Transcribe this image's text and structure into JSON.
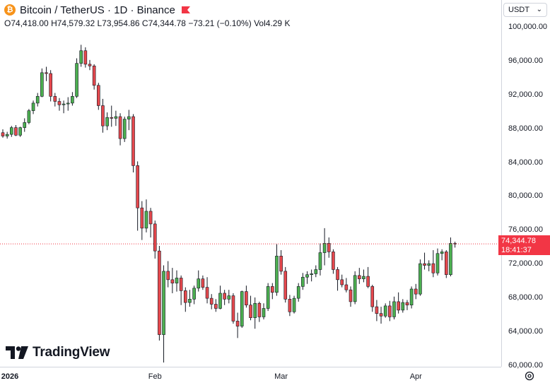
{
  "header": {
    "title": "Bitcoin / TetherUS · 1D · Binance",
    "coin_symbol": "₿",
    "ohlc": {
      "open_label": "O",
      "open": "74,418.00",
      "high_label": "H",
      "high": "74,579.32",
      "low_label": "L",
      "low": "73,954.86",
      "close_label": "C",
      "close": "74,344.78",
      "change": "−73.21 (−0.10%)",
      "vol_label": "Vol",
      "vol": "4.29 K"
    }
  },
  "axis": {
    "currency": "USDT",
    "last_price": "74,344.78",
    "countdown": "18:41:37"
  },
  "logo": {
    "text": "TradingView",
    "icon": "tradingview-logo-icon"
  },
  "colors": {
    "up": "#26a69a",
    "up_fill": "#4caf50",
    "down": "#f23645",
    "down_fill": "#e5484d",
    "price_line": "#f23645"
  },
  "chart_data": {
    "type": "candlestick",
    "title": "Bitcoin / TetherUS · 1D · Binance",
    "xlabel": "",
    "ylabel": "",
    "ylim": [
      59800,
      103200
    ],
    "y_ticks": [
      "100,000.00",
      "96,000.00",
      "92,000.00",
      "88,000.00",
      "84,000.00",
      "80,000.00",
      "76,000.00",
      "72,000.00",
      "68,000.00",
      "64,000.00",
      "60,000.00"
    ],
    "x_ticks": [
      "2026",
      "Feb",
      "Mar",
      "Apr"
    ],
    "x_tick_index": [
      0,
      35,
      64,
      95
    ],
    "grid": false,
    "candles": [
      [
        87500,
        87900,
        86900,
        87100
      ],
      [
        87100,
        87600,
        86800,
        87300
      ],
      [
        87300,
        88300,
        87000,
        88100
      ],
      [
        88100,
        88400,
        87100,
        87200
      ],
      [
        87200,
        88200,
        87000,
        88100
      ],
      [
        88100,
        89200,
        87600,
        88700
      ],
      [
        88700,
        90300,
        88500,
        90100
      ],
      [
        90100,
        91300,
        89700,
        91000
      ],
      [
        91000,
        92200,
        90600,
        91800
      ],
      [
        91800,
        95100,
        91700,
        94600
      ],
      [
        94600,
        95300,
        93600,
        94500
      ],
      [
        94500,
        94900,
        91200,
        91800
      ],
      [
        91800,
        92200,
        90600,
        91200
      ],
      [
        91200,
        91600,
        90100,
        90800
      ],
      [
        90800,
        91300,
        89800,
        90900
      ],
      [
        90900,
        91700,
        90100,
        91000
      ],
      [
        91000,
        92300,
        90700,
        91800
      ],
      [
        91800,
        96300,
        91600,
        95700
      ],
      [
        95700,
        97900,
        95300,
        97200
      ],
      [
        97200,
        97600,
        95200,
        95600
      ],
      [
        95600,
        96100,
        94900,
        95400
      ],
      [
        95400,
        95600,
        92600,
        93100
      ],
      [
        93100,
        93400,
        90200,
        90700
      ],
      [
        90700,
        91500,
        87500,
        88300
      ],
      [
        88300,
        89900,
        87800,
        89300
      ],
      [
        89300,
        90700,
        88200,
        89200
      ],
      [
        89200,
        90100,
        88300,
        89400
      ],
      [
        89400,
        89800,
        86000,
        86800
      ],
      [
        86800,
        89400,
        86400,
        89100
      ],
      [
        89100,
        90200,
        87800,
        89400
      ],
      [
        89400,
        89700,
        82800,
        83600
      ],
      [
        83600,
        84100,
        75900,
        78600
      ],
      [
        78600,
        79400,
        74800,
        76200
      ],
      [
        76200,
        79600,
        75700,
        78200
      ],
      [
        78200,
        78600,
        75100,
        76700
      ],
      [
        76700,
        77100,
        72600,
        73500
      ],
      [
        73500,
        74100,
        62900,
        63600
      ],
      [
        63600,
        71800,
        60300,
        71100
      ],
      [
        71100,
        72300,
        69200,
        70100
      ],
      [
        70100,
        71500,
        68500,
        69700
      ],
      [
        69700,
        71200,
        68700,
        70300
      ],
      [
        70300,
        70600,
        67100,
        68800
      ],
      [
        68800,
        69200,
        66300,
        67400
      ],
      [
        67400,
        68900,
        66900,
        67800
      ],
      [
        67800,
        69400,
        67200,
        69100
      ],
      [
        69100,
        71200,
        68700,
        70200
      ],
      [
        70200,
        70600,
        68900,
        69200
      ],
      [
        69200,
        70400,
        67300,
        67900
      ],
      [
        67900,
        68400,
        66600,
        67200
      ],
      [
        67200,
        67800,
        66300,
        66700
      ],
      [
        66700,
        69400,
        66600,
        68500
      ],
      [
        68500,
        68900,
        67100,
        67800
      ],
      [
        67800,
        68900,
        67300,
        68200
      ],
      [
        68200,
        68500,
        64900,
        65200
      ],
      [
        65200,
        66200,
        63200,
        64600
      ],
      [
        64600,
        68800,
        64400,
        68700
      ],
      [
        68700,
        69400,
        66800,
        67100
      ],
      [
        67100,
        68200,
        65300,
        65600
      ],
      [
        65600,
        68000,
        64300,
        67300
      ],
      [
        67300,
        67500,
        65100,
        65700
      ],
      [
        65700,
        67300,
        65400,
        66700
      ],
      [
        66700,
        69700,
        66400,
        69300
      ],
      [
        69300,
        69700,
        67800,
        68600
      ],
      [
        68600,
        74300,
        68200,
        72900
      ],
      [
        72900,
        73600,
        70700,
        71100
      ],
      [
        71100,
        71600,
        67400,
        67800
      ],
      [
        67800,
        68300,
        65800,
        66300
      ],
      [
        66300,
        68200,
        66100,
        67900
      ],
      [
        67900,
        69700,
        67500,
        69300
      ],
      [
        69300,
        70900,
        68900,
        70400
      ],
      [
        70400,
        71100,
        69600,
        70700
      ],
      [
        70700,
        71300,
        69900,
        70800
      ],
      [
        70800,
        71800,
        70400,
        71300
      ],
      [
        71300,
        74400,
        70600,
        73300
      ],
      [
        73300,
        76200,
        71800,
        74400
      ],
      [
        74400,
        75100,
        72700,
        73400
      ],
      [
        73400,
        73700,
        70800,
        71300
      ],
      [
        71300,
        71600,
        68800,
        70100
      ],
      [
        70100,
        70700,
        69200,
        69500
      ],
      [
        69500,
        70300,
        68600,
        68900
      ],
      [
        68900,
        69300,
        66900,
        67500
      ],
      [
        67500,
        71100,
        67200,
        70600
      ],
      [
        70600,
        71500,
        69600,
        70200
      ],
      [
        70200,
        71300,
        69800,
        70500
      ],
      [
        70500,
        71600,
        69100,
        69300
      ],
      [
        69300,
        69500,
        66300,
        66900
      ],
      [
        66900,
        67700,
        65200,
        66100
      ],
      [
        66100,
        66900,
        64900,
        65800
      ],
      [
        65800,
        67300,
        65600,
        67000
      ],
      [
        67000,
        67600,
        65200,
        65700
      ],
      [
        65700,
        68100,
        65400,
        67500
      ],
      [
        67500,
        68600,
        66100,
        66500
      ],
      [
        66500,
        67800,
        66200,
        67400
      ],
      [
        67400,
        67700,
        66500,
        67100
      ],
      [
        67100,
        69300,
        66700,
        69000
      ],
      [
        69000,
        69600,
        67800,
        68400
      ],
      [
        68400,
        72500,
        68200,
        72000
      ],
      [
        72000,
        73300,
        71300,
        71800
      ],
      [
        71800,
        72400,
        71100,
        72000
      ],
      [
        72000,
        73600,
        70400,
        70900
      ],
      [
        70900,
        73800,
        70600,
        73200
      ],
      [
        73200,
        73700,
        72400,
        73400
      ],
      [
        73400,
        73600,
        70300,
        70700
      ],
      [
        70700,
        75100,
        70500,
        74400
      ],
      [
        74400,
        74600,
        73900,
        74344.78
      ]
    ]
  }
}
